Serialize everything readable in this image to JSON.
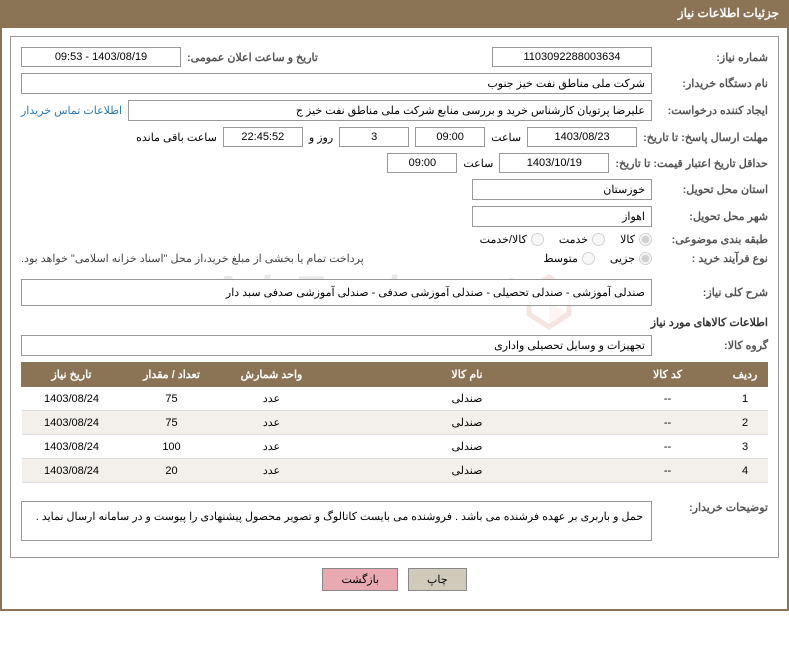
{
  "header": {
    "title": "جزئیات اطلاعات نیاز"
  },
  "fields": {
    "need_number_label": "شماره نیاز:",
    "need_number": "1103092288003634",
    "announce_datetime_label": "تاریخ و ساعت اعلان عمومی:",
    "announce_datetime": "1403/08/19 - 09:53",
    "buyer_org_label": "نام دستگاه خریدار:",
    "buyer_org": "شرکت ملی مناطق نفت خیز جنوب",
    "creator_label": "ایجاد کننده درخواست:",
    "creator": "علیرضا  پرتویان  کارشناس خرید و بررسی منابع  شرکت ملی مناطق نفت خیز ج",
    "contact_link": "اطلاعات تماس خریدار",
    "deadline_label": "مهلت ارسال پاسخ: تا تاریخ:",
    "deadline_date": "1403/08/23",
    "hour_label": "ساعت",
    "deadline_hour": "09:00",
    "days_count": "3",
    "days_suffix": "روز و",
    "time_remaining": "22:45:52",
    "remaining_label": "ساعت باقی مانده",
    "validity_label": "حداقل تاریخ اعتبار قیمت: تا تاریخ:",
    "validity_date": "1403/10/19",
    "validity_hour": "09:00",
    "province_label": "استان محل تحویل:",
    "province": "خوزستان",
    "city_label": "شهر محل تحویل:",
    "city": "اهواز",
    "category_label": "طبقه بندی موضوعی:",
    "purchase_type_label": "نوع فرآیند خرید :",
    "payment_note": "پرداخت تمام یا بخشی از مبلغ خرید،از محل \"اسناد خزانه اسلامی\" خواهد بود.",
    "summary_label": "شرح کلی نیاز:",
    "summary": "صندلی آموزشی - صندلی تحصیلی - صندلی آموزشی صدفی - صندلی آموزشی صدفی سبد دار",
    "goods_info_title": "اطلاعات کالاهای مورد نیاز",
    "group_label": "گروه کالا:",
    "group": "تجهیزات و وسایل تحصیلی واداری",
    "buyer_notes_label": "توضیحات خریدار:",
    "buyer_notes": "حمل و باربری بر عهده فرشنده می باشد . فروشنده می بایست کاتالوگ و تصویر محصول پیشنهادی را پیوست و در سامانه ارسال نماید ."
  },
  "radios": {
    "category": {
      "options": [
        {
          "label": "کالا",
          "checked": true
        },
        {
          "label": "خدمت",
          "checked": false
        },
        {
          "label": "کالا/خدمت",
          "checked": false
        }
      ]
    },
    "purchase_type": {
      "options": [
        {
          "label": "جزیی",
          "checked": true
        },
        {
          "label": "متوسط",
          "checked": false
        }
      ]
    }
  },
  "table": {
    "headers": {
      "row": "ردیف",
      "code": "کد کالا",
      "name": "نام کالا",
      "unit": "واحد شمارش",
      "qty": "تعداد / مقدار",
      "date": "تاریخ نیاز"
    },
    "rows": [
      {
        "n": "1",
        "code": "--",
        "name": "صندلی",
        "unit": "عدد",
        "qty": "75",
        "date": "1403/08/24"
      },
      {
        "n": "2",
        "code": "--",
        "name": "صندلی",
        "unit": "عدد",
        "qty": "75",
        "date": "1403/08/24"
      },
      {
        "n": "3",
        "code": "--",
        "name": "صندلی",
        "unit": "عدد",
        "qty": "100",
        "date": "1403/08/24"
      },
      {
        "n": "4",
        "code": "--",
        "name": "صندلی",
        "unit": "عدد",
        "qty": "20",
        "date": "1403/08/24"
      }
    ]
  },
  "buttons": {
    "print": "چاپ",
    "back": "بازگشت"
  },
  "watermark": {
    "text": "AriaTender.net"
  },
  "colors": {
    "brown": "#8b7355",
    "link": "#2a7ab0",
    "btn_print_bg": "#d0cabb",
    "btn_back_bg": "#e8a9b0"
  }
}
